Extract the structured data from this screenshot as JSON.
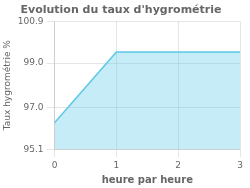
{
  "chart_data": {
    "type": "area",
    "title": "Evolution du taux d'hygrométrie",
    "xlabel": "heure par heure",
    "ylabel": "Taux hygrométrie %",
    "x": [
      0,
      1,
      3
    ],
    "values": [
      96.3,
      99.5,
      99.5
    ],
    "color": "#5bc8e8",
    "xlim": [
      0,
      3
    ],
    "ylim": [
      95.1,
      100.9
    ],
    "xticks": [
      0,
      1,
      2,
      3
    ],
    "yticks": [
      95.1,
      {
        "value": 97.0,
        "label": "97.0"
      },
      {
        "value": 99.0,
        "label": "99.0"
      },
      100.9
    ],
    "grid": true
  }
}
